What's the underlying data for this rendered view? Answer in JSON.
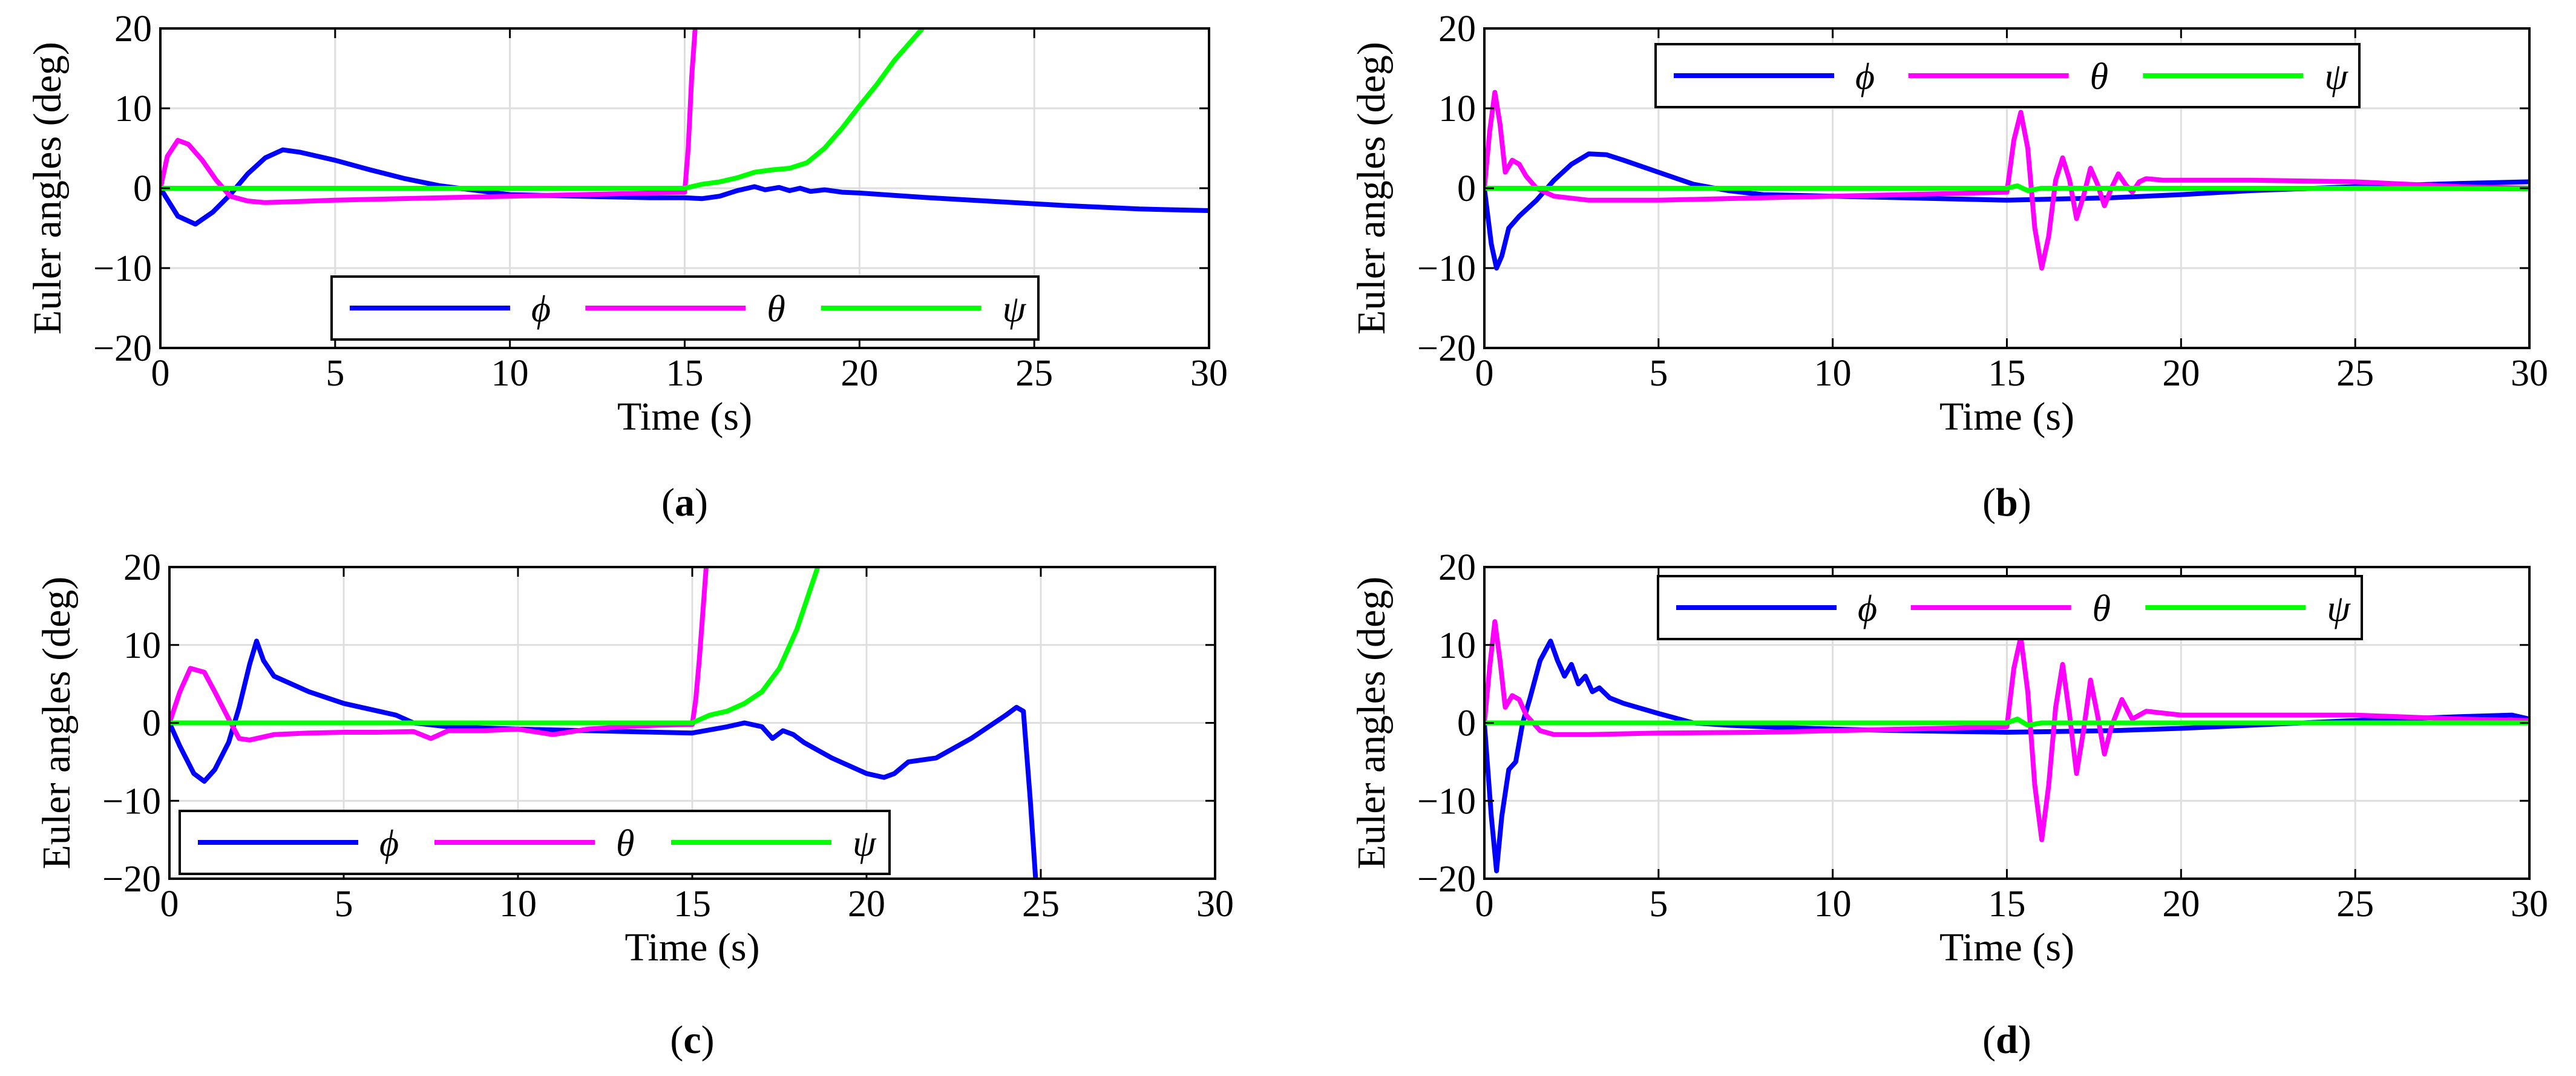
{
  "chart_data": [
    {
      "panel": "a",
      "type": "line",
      "caption": "(a)",
      "xlabel": "Time (s)",
      "ylabel": "Euler angles (deg)",
      "xlim": [
        0,
        30
      ],
      "ylim": [
        -20,
        20
      ],
      "xticks": [
        0,
        5,
        10,
        15,
        20,
        25,
        30
      ],
      "yticks": [
        -20,
        -10,
        0,
        10,
        20
      ],
      "grid": true,
      "legend": {
        "position": "bottom-center",
        "entries": [
          "ϕ",
          "θ",
          "ψ"
        ]
      },
      "series": [
        {
          "name": "ϕ",
          "color": "#0000ff",
          "x": [
            0,
            0.5,
            1,
            1.5,
            2,
            2.5,
            3,
            3.5,
            4,
            5,
            6,
            7,
            8,
            10,
            12,
            14,
            15,
            15.5,
            16,
            16.5,
            17,
            17.3,
            17.7,
            18,
            18.3,
            18.6,
            19,
            19.5,
            20,
            21,
            22,
            24,
            26,
            28,
            30
          ],
          "y": [
            0,
            -3.5,
            -4.5,
            -3,
            -0.8,
            1.8,
            3.8,
            4.8,
            4.5,
            3.5,
            2.3,
            1.2,
            0.3,
            -0.8,
            -1,
            -1.2,
            -1.2,
            -1.3,
            -1,
            -0.3,
            0.2,
            -0.2,
            0.1,
            -0.3,
            0,
            -0.4,
            -0.2,
            -0.5,
            -0.6,
            -0.9,
            -1.2,
            -1.7,
            -2.2,
            -2.6,
            -2.8
          ]
        },
        {
          "name": "θ",
          "color": "#ff00ff",
          "x": [
            0,
            0.2,
            0.5,
            0.8,
            1.2,
            1.6,
            2,
            2.5,
            3,
            5,
            8,
            10,
            12,
            14,
            15,
            15.1,
            15.2,
            15.3
          ],
          "y": [
            0,
            4,
            6,
            5.5,
            3.5,
            1,
            -1,
            -1.6,
            -1.8,
            -1.5,
            -1.2,
            -1,
            -0.8,
            -0.6,
            -0.5,
            5,
            14,
            20
          ]
        },
        {
          "name": "ψ",
          "color": "#00ff00",
          "x": [
            0,
            5,
            10,
            15,
            15.5,
            16,
            16.5,
            17,
            17.5,
            18,
            18.5,
            19,
            19.5,
            20,
            20.5,
            21,
            21.5,
            21.8
          ],
          "y": [
            0,
            0,
            0,
            0,
            0.5,
            0.8,
            1.3,
            2,
            2.3,
            2.5,
            3.2,
            5,
            7.5,
            10.3,
            13,
            16,
            18.5,
            20
          ]
        }
      ]
    },
    {
      "panel": "b",
      "type": "line",
      "caption": "(b)",
      "xlabel": "Time (s)",
      "ylabel": "Euler angles (deg)",
      "xlim": [
        0,
        30
      ],
      "ylim": [
        -20,
        20
      ],
      "xticks": [
        0,
        5,
        10,
        15,
        20,
        25,
        30
      ],
      "yticks": [
        -20,
        -10,
        0,
        10,
        20
      ],
      "grid": true,
      "legend": {
        "position": "top-center",
        "entries": [
          "ϕ",
          "θ",
          "ψ"
        ]
      },
      "series": [
        {
          "name": "ϕ",
          "color": "#0000ff",
          "x": [
            0,
            0.2,
            0.35,
            0.5,
            0.7,
            1,
            1.5,
            2,
            2.5,
            3,
            3.5,
            4,
            5,
            6,
            7,
            8,
            10,
            12,
            15,
            18,
            20,
            22,
            25,
            28,
            30
          ],
          "y": [
            0,
            -7,
            -10,
            -8.5,
            -5,
            -3.5,
            -1.5,
            1,
            3,
            4.3,
            4.2,
            3.5,
            2,
            0.5,
            -0.3,
            -0.8,
            -1,
            -1.2,
            -1.5,
            -1.2,
            -0.8,
            -0.3,
            0.2,
            0.6,
            0.8
          ]
        },
        {
          "name": "θ",
          "color": "#ff00ff",
          "x": [
            0,
            0.15,
            0.3,
            0.45,
            0.6,
            0.8,
            1,
            1.2,
            1.5,
            2,
            3,
            5,
            8,
            10,
            12,
            15,
            15.2,
            15.4,
            15.6,
            15.8,
            16,
            16.2,
            16.4,
            16.6,
            16.8,
            17,
            17.2,
            17.4,
            17.6,
            17.8,
            18,
            18.2,
            18.4,
            18.6,
            18.8,
            19,
            19.5,
            20,
            22,
            25,
            28,
            30
          ],
          "y": [
            0,
            7,
            12,
            8,
            2,
            3.5,
            3,
            1.5,
            0,
            -1,
            -1.5,
            -1.5,
            -1.2,
            -1,
            -0.8,
            -0.5,
            6,
            9.5,
            5,
            -5,
            -10,
            -6,
            1,
            3.8,
            1,
            -3.8,
            -1,
            2.5,
            0.5,
            -2.2,
            0,
            1.8,
            0.5,
            -0.5,
            0.8,
            1.2,
            1,
            1,
            1,
            0.8,
            0.2,
            0
          ]
        },
        {
          "name": "ψ",
          "color": "#00ff00",
          "x": [
            0,
            5,
            10,
            15,
            15.3,
            15.6,
            16,
            20,
            25,
            30
          ],
          "y": [
            0,
            0,
            0,
            0,
            0.3,
            -0.3,
            0,
            0,
            0,
            -0.1
          ]
        }
      ]
    },
    {
      "panel": "c",
      "type": "line",
      "caption": "(c)",
      "xlabel": "Time (s)",
      "ylabel": "Euler angles (deg)",
      "xlim": [
        0,
        30
      ],
      "ylim": [
        -20,
        20
      ],
      "xticks": [
        0,
        5,
        10,
        15,
        20,
        25,
        30
      ],
      "yticks": [
        -20,
        -10,
        0,
        10,
        20
      ],
      "grid": true,
      "legend": {
        "position": "bottom-left",
        "entries": [
          "ϕ",
          "θ",
          "ψ"
        ]
      },
      "series": [
        {
          "name": "ϕ",
          "color": "#0000ff",
          "x": [
            0,
            0.3,
            0.7,
            1,
            1.3,
            1.7,
            2,
            2.3,
            2.5,
            2.7,
            3,
            4,
            5,
            6,
            6.5,
            7,
            8,
            10,
            12,
            14,
            15,
            16,
            16.5,
            17,
            17.3,
            17.6,
            17.9,
            18.2,
            19,
            20,
            20.5,
            20.8,
            21.2,
            22,
            23,
            24,
            24.3,
            24.5,
            24.7,
            24.85
          ],
          "y": [
            0,
            -3,
            -6.5,
            -7.5,
            -6,
            -2.5,
            2,
            7.5,
            10.5,
            8,
            6,
            4,
            2.5,
            1.5,
            1,
            0,
            -0.5,
            -0.8,
            -1,
            -1.2,
            -1.3,
            -0.5,
            0,
            -0.5,
            -2,
            -1,
            -1.5,
            -2.5,
            -4.5,
            -6.5,
            -7,
            -6.5,
            -5,
            -4.5,
            -2,
            1,
            2,
            1.5,
            -10,
            -20
          ]
        },
        {
          "name": "θ",
          "color": "#ff00ff",
          "x": [
            0,
            0.3,
            0.6,
            1,
            1.3,
            1.7,
            2,
            2.3,
            3,
            4,
            5,
            6,
            7,
            7.5,
            8,
            9,
            10,
            11,
            12,
            13,
            14,
            15,
            15.1,
            15.2,
            15.3,
            15.4
          ],
          "y": [
            0,
            4,
            7,
            6.5,
            4,
            0.5,
            -2,
            -2.2,
            -1.5,
            -1.3,
            -1.2,
            -1.2,
            -1.1,
            -2,
            -1,
            -1,
            -0.8,
            -1.5,
            -0.8,
            -0.5,
            -0.3,
            -0.2,
            3,
            8,
            14,
            20
          ]
        },
        {
          "name": "ψ",
          "color": "#00ff00",
          "x": [
            0,
            5,
            10,
            15,
            15.5,
            16,
            16.5,
            17,
            17.5,
            18,
            18.3,
            18.6
          ],
          "y": [
            0,
            0,
            0,
            0,
            1,
            1.5,
            2.5,
            4,
            7,
            12,
            16,
            20
          ]
        }
      ]
    },
    {
      "panel": "d",
      "type": "line",
      "caption": "(d)",
      "xlabel": "Time (s)",
      "ylabel": "Euler angles (deg)",
      "xlim": [
        0,
        30
      ],
      "ylim": [
        -20,
        20
      ],
      "xticks": [
        0,
        5,
        10,
        15,
        20,
        25,
        30
      ],
      "yticks": [
        -20,
        -10,
        0,
        10,
        20
      ],
      "grid": true,
      "legend": {
        "position": "top-center",
        "entries": [
          "ϕ",
          "θ",
          "ψ"
        ]
      },
      "series": [
        {
          "name": "ϕ",
          "color": "#0000ff",
          "x": [
            0,
            0.2,
            0.35,
            0.5,
            0.7,
            0.9,
            1.1,
            1.3,
            1.6,
            1.9,
            2.1,
            2.3,
            2.5,
            2.7,
            2.9,
            3.1,
            3.3,
            3.6,
            4,
            5,
            6,
            7,
            8,
            10,
            12,
            15,
            18,
            20,
            22,
            25,
            28,
            29.5,
            30
          ],
          "y": [
            0,
            -12,
            -19,
            -12,
            -6,
            -5,
            0,
            3,
            8,
            10.5,
            8,
            6,
            7.5,
            5,
            6,
            4,
            4.5,
            3.2,
            2.5,
            1.2,
            0,
            -0.3,
            -0.5,
            -0.8,
            -1,
            -1.2,
            -1,
            -0.7,
            -0.3,
            0.3,
            0.8,
            1,
            0.5
          ]
        },
        {
          "name": "θ",
          "color": "#ff00ff",
          "x": [
            0,
            0.15,
            0.3,
            0.45,
            0.6,
            0.8,
            1,
            1.2,
            1.6,
            2,
            3,
            5,
            8,
            10,
            12,
            15,
            15.2,
            15.4,
            15.6,
            15.8,
            16,
            16.2,
            16.4,
            16.6,
            16.8,
            17,
            17.2,
            17.4,
            17.6,
            17.8,
            18,
            18.3,
            18.6,
            19,
            20,
            22,
            25,
            28,
            30
          ],
          "y": [
            0,
            7,
            13,
            8,
            2,
            3.5,
            3,
            1,
            -1,
            -1.5,
            -1.5,
            -1.3,
            -1.2,
            -1,
            -0.8,
            -0.5,
            7,
            11,
            4,
            -8,
            -15,
            -8,
            2,
            7.5,
            1,
            -6.5,
            -1,
            5.5,
            1,
            -4,
            -0.5,
            3,
            0.5,
            1.5,
            1,
            1,
            1,
            0.5,
            0.3
          ]
        },
        {
          "name": "ψ",
          "color": "#00ff00",
          "x": [
            0,
            5,
            10,
            15,
            15.3,
            15.6,
            16,
            20,
            25,
            30
          ],
          "y": [
            0,
            0,
            0,
            0,
            0.5,
            -0.3,
            0,
            0,
            0,
            0
          ]
        }
      ]
    }
  ]
}
